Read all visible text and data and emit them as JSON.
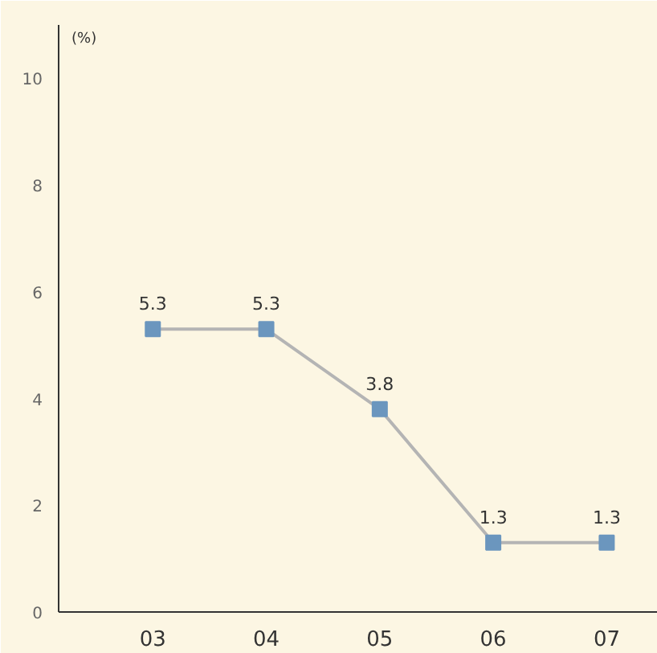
{
  "chart_data": {
    "type": "line",
    "ylabel": "(%)",
    "categories": [
      "03",
      "04",
      "05",
      "06",
      "07"
    ],
    "series": [
      {
        "color": "#6b96be",
        "values": [
          5.3,
          5.3,
          3.8,
          1.3,
          1.3
        ]
      }
    ],
    "ylim": [
      0,
      11
    ],
    "yticks": [
      0,
      2,
      4,
      6,
      8,
      10
    ],
    "grid": false,
    "marker": "square",
    "line_style": "solid",
    "data_labels": true
  }
}
